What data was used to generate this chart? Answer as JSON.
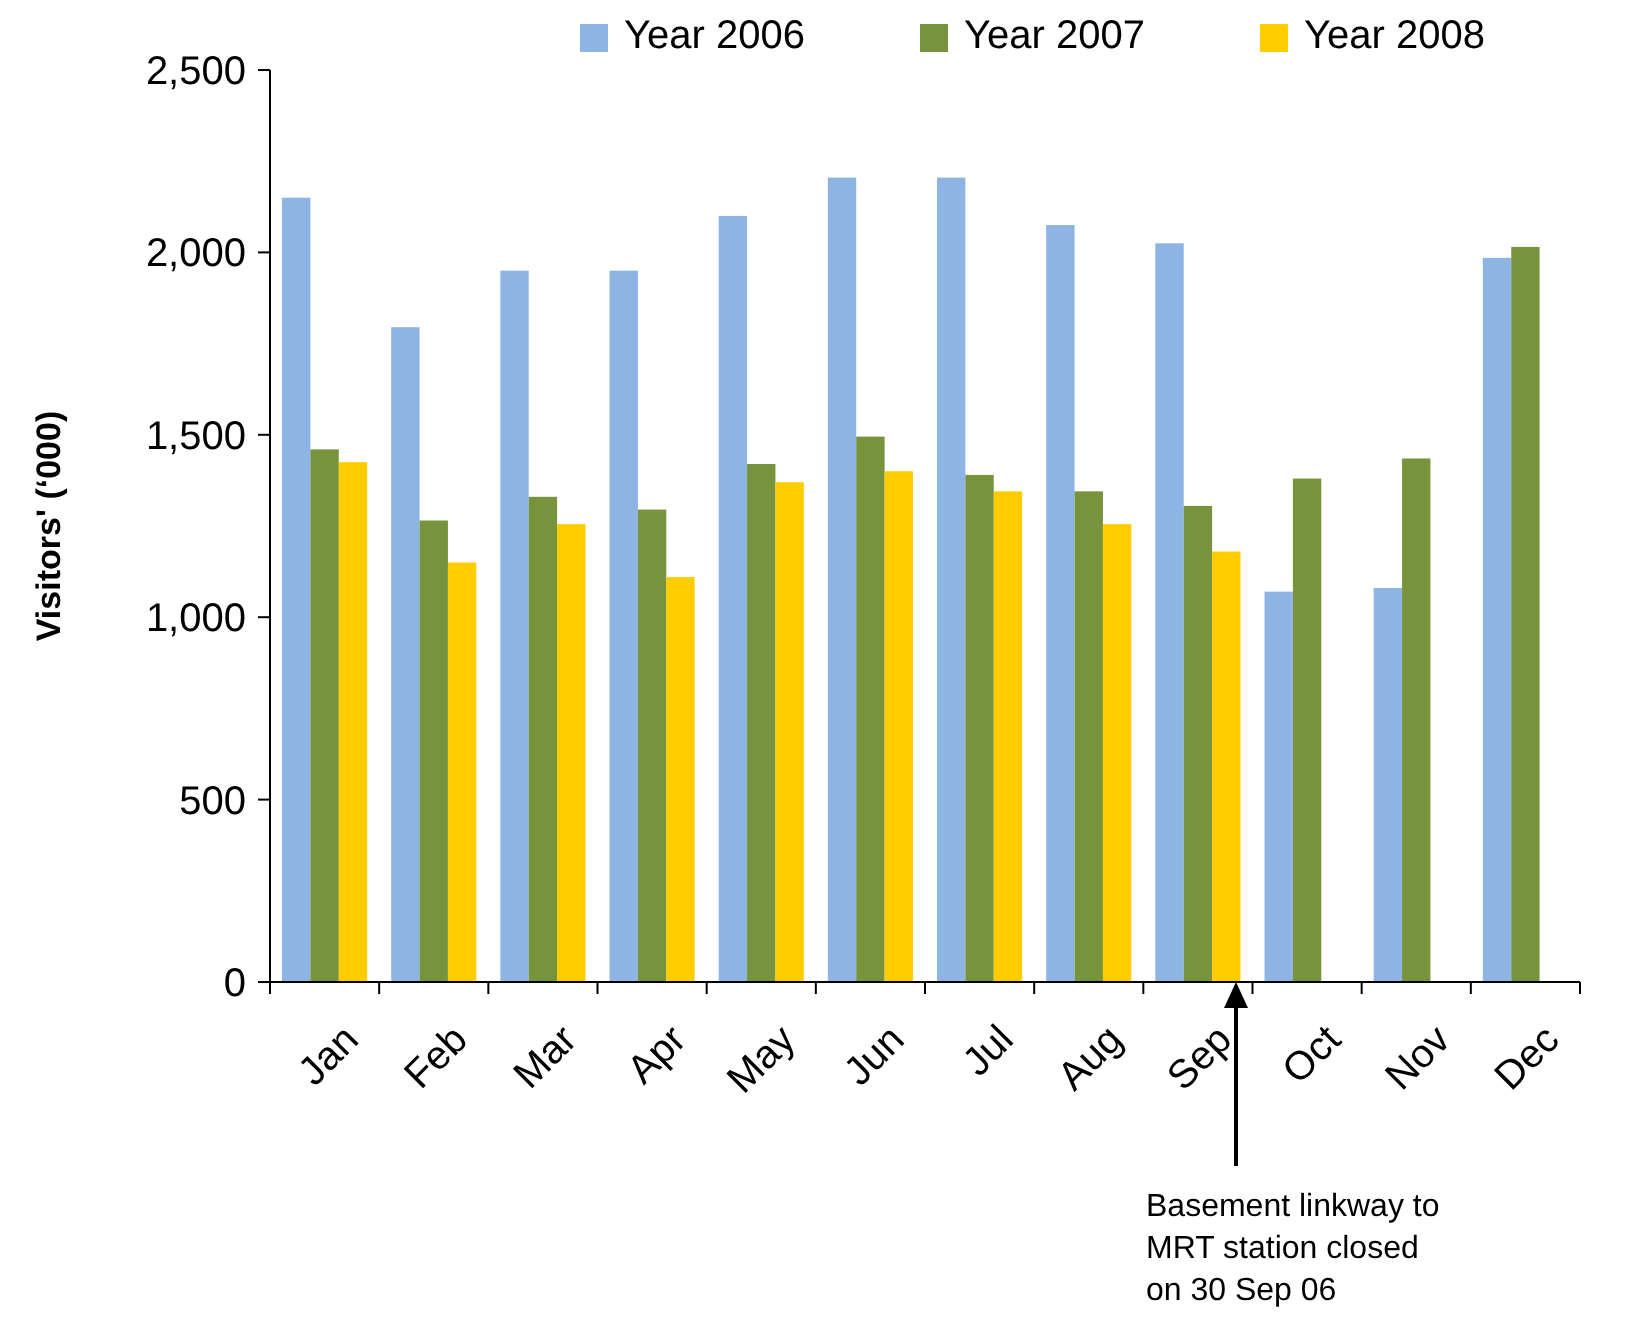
{
  "chart_data": {
    "type": "bar",
    "ylabel": "Visitors' (‘000)",
    "categories": [
      "Jan",
      "Feb",
      "Mar",
      "Apr",
      "May",
      "Jun",
      "Jul",
      "Aug",
      "Sep",
      "Oct",
      "Nov",
      "Dec"
    ],
    "series": [
      {
        "name": "Year 2006",
        "color": "#8eb4e3",
        "values": [
          2150,
          1795,
          1950,
          1950,
          2100,
          2205,
          2205,
          2075,
          2025,
          1070,
          1080,
          1985
        ]
      },
      {
        "name": "Year 2007",
        "color": "#77933c",
        "values": [
          1460,
          1265,
          1330,
          1295,
          1420,
          1495,
          1390,
          1345,
          1305,
          1380,
          1435,
          2015
        ]
      },
      {
        "name": "Year 2008",
        "color": "#ffcc00",
        "values": [
          1425,
          1150,
          1255,
          1110,
          1370,
          1400,
          1345,
          1255,
          1180,
          null,
          null,
          null
        ]
      }
    ],
    "ylim": [
      0,
      2500
    ],
    "yticks": [
      0,
      500,
      {
        "value": 1000,
        "label": "1,000"
      },
      {
        "value": 1500,
        "label": "1,500"
      },
      {
        "value": 2000,
        "label": "2,000"
      },
      {
        "value": 2500,
        "label": "2,500"
      }
    ],
    "grid": false,
    "legend": "top right",
    "annotations": [
      "Basement linkway to MRT station closed on 30 Sep 06"
    ]
  }
}
